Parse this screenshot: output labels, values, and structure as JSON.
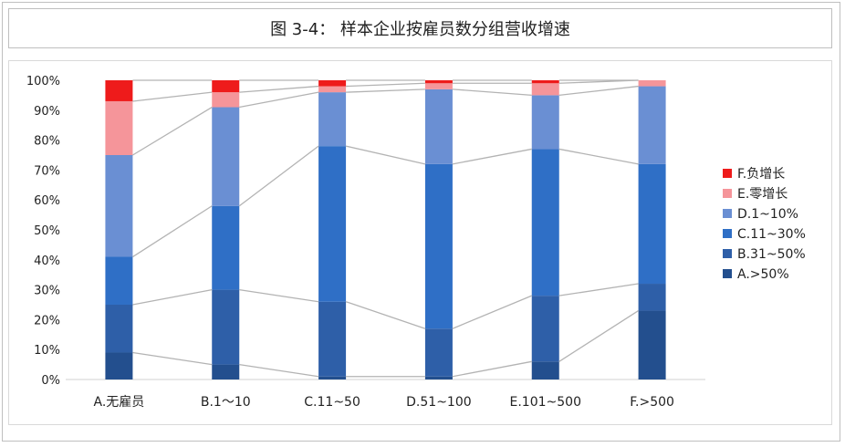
{
  "title": "图 3-4： 样本企业按雇员数分组营收增速",
  "chart_data": {
    "type": "bar",
    "stacked": true,
    "normalized": true,
    "categories": [
      "A.无雇员",
      "B.1～10",
      "C.11~50",
      "D.51~100",
      "E.101~500",
      "F.>500"
    ],
    "y_ticks": [
      "0%",
      "10%",
      "20%",
      "30%",
      "40%",
      "50%",
      "60%",
      "70%",
      "80%",
      "90%",
      "100%"
    ],
    "ylim": [
      0,
      100
    ],
    "series_lines": true,
    "legend_position": "right",
    "series": [
      {
        "name": "A.>50%",
        "color": "#234f8e",
        "values": [
          9,
          5,
          1,
          1,
          6,
          23
        ]
      },
      {
        "name": "B.31~50%",
        "color": "#2e5fa8",
        "values": [
          16,
          25,
          25,
          16,
          22,
          9
        ]
      },
      {
        "name": "C.11~30%",
        "color": "#2f6fc6",
        "values": [
          16,
          28,
          52,
          55,
          49,
          40
        ]
      },
      {
        "name": "D.1~10%",
        "color": "#6a8fd3",
        "values": [
          34,
          33,
          18,
          25,
          18,
          26
        ]
      },
      {
        "name": "E.零增长",
        "color": "#f5959a",
        "values": [
          18,
          5,
          2,
          2,
          4,
          2
        ]
      },
      {
        "name": "F.负增长",
        "color": "#ee1b1b",
        "values": [
          7,
          4,
          2,
          1,
          1,
          0
        ]
      }
    ]
  }
}
